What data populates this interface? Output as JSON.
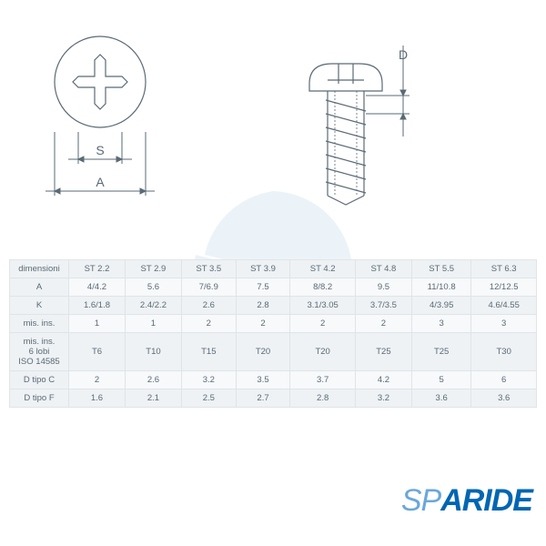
{
  "diagram": {
    "labels": {
      "S": "S",
      "A": "A",
      "D": "D"
    },
    "line_color": "#5a6a75",
    "stroke_width": 1.2
  },
  "table": {
    "header_bg": "#eef2f5",
    "row_alt_bg": "#f7f9fa",
    "text_color": "#5a6a75",
    "border_color": "#e0e4e8",
    "columns": [
      "dimensioni",
      "ST 2.2",
      "ST 2.9",
      "ST 3.5",
      "ST 3.9",
      "ST 4.2",
      "ST 4.8",
      "ST 5.5",
      "ST 6.3"
    ],
    "rows": [
      [
        "A",
        "4/4.2",
        "5.6",
        "7/6.9",
        "7.5",
        "8/8.2",
        "9.5",
        "11/10.8",
        "12/12.5"
      ],
      [
        "K",
        "1.6/1.8",
        "2.4/2.2",
        "2.6",
        "2.8",
        "3.1/3.05",
        "3.7/3.5",
        "4/3.95",
        "4.6/4.55"
      ],
      [
        "mis. ins.",
        "1",
        "1",
        "2",
        "2",
        "2",
        "2",
        "3",
        "3"
      ],
      [
        "mis. ins.\n6 lobi\nISO 14585",
        "T6",
        "T10",
        "T15",
        "T20",
        "T20",
        "T25",
        "T25",
        "T30"
      ],
      [
        "D tipo C",
        "2",
        "2.6",
        "3.2",
        "3.5",
        "3.7",
        "4.2",
        "5",
        "6"
      ],
      [
        "D tipo F",
        "1.6",
        "2.1",
        "2.5",
        "2.7",
        "2.8",
        "3.2",
        "3.6",
        "3.6"
      ]
    ]
  },
  "logo": {
    "text_light": "SP",
    "text_bold": "ARIDE",
    "color": "#0066b3"
  },
  "watermark": {
    "color": "#6aa8d8"
  }
}
